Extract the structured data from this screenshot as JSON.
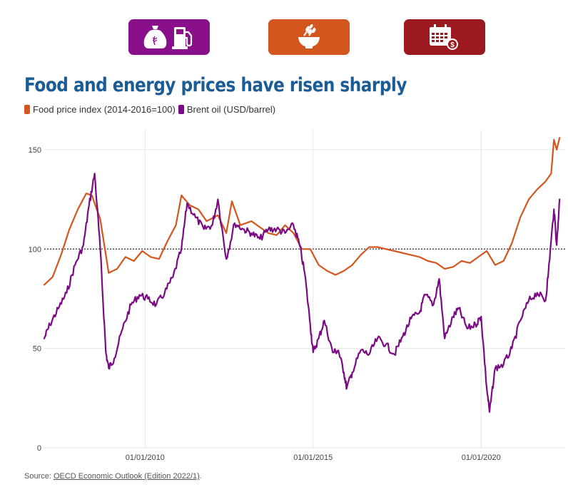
{
  "icons": {
    "tile1": [
      "food-sack-icon",
      "fuel-pump-icon"
    ],
    "tile2": [
      "grain-bowl-icon"
    ],
    "tile3": [
      "calendar-dollar-icon"
    ],
    "colors": {
      "purple": "#8a0f8b",
      "orange": "#d4561f",
      "red": "#9c1a1f"
    }
  },
  "title": "Food and energy prices have risen sharply",
  "chart_data": {
    "type": "line",
    "title": "Food and energy prices have risen sharply",
    "xlabel": "",
    "ylabel": "",
    "xlim": [
      "2007-01-01",
      "2022-07-01"
    ],
    "ylim": [
      0,
      160
    ],
    "yticks": [
      "0",
      "50",
      "100",
      "150"
    ],
    "xticks": [
      "01/01/2010",
      "01/01/2015",
      "01/01/2020"
    ],
    "xtick_dates": [
      "2010-01-01",
      "2015-01-01",
      "2020-01-01"
    ],
    "reference_line": {
      "y": 100,
      "style": "dotted"
    },
    "grid": true,
    "legend_position": "top-left",
    "series": [
      {
        "name": "Food price index (2014-2016=100)",
        "color": "#d4561f",
        "x": [
          "2007-01",
          "2007-04",
          "2007-07",
          "2007-10",
          "2008-01",
          "2008-04",
          "2008-06",
          "2008-09",
          "2008-12",
          "2009-03",
          "2009-06",
          "2009-09",
          "2009-12",
          "2010-03",
          "2010-06",
          "2010-09",
          "2010-12",
          "2011-02",
          "2011-05",
          "2011-08",
          "2011-11",
          "2012-03",
          "2012-06",
          "2012-08",
          "2012-11",
          "2013-03",
          "2013-06",
          "2013-09",
          "2013-12",
          "2014-03",
          "2014-06",
          "2014-09",
          "2014-12",
          "2015-03",
          "2015-06",
          "2015-09",
          "2015-12",
          "2016-03",
          "2016-06",
          "2016-09",
          "2016-12",
          "2017-03",
          "2017-06",
          "2017-09",
          "2017-12",
          "2018-03",
          "2018-06",
          "2018-09",
          "2018-12",
          "2019-03",
          "2019-06",
          "2019-09",
          "2019-12",
          "2020-03",
          "2020-06",
          "2020-09",
          "2020-12",
          "2021-03",
          "2021-06",
          "2021-09",
          "2021-12",
          "2022-02",
          "2022-03",
          "2022-04",
          "2022-05"
        ],
        "values": [
          82,
          86,
          97,
          110,
          120,
          128,
          127,
          115,
          88,
          90,
          96,
          94,
          99,
          96,
          95,
          104,
          112,
          127,
          122,
          120,
          114,
          117,
          108,
          124,
          112,
          114,
          111,
          108,
          107,
          112,
          108,
          100,
          100,
          92,
          89,
          87,
          89,
          92,
          97,
          101,
          101,
          100,
          99,
          98,
          97,
          96,
          94,
          93,
          90,
          91,
          94,
          93,
          96,
          99,
          92,
          94,
          103,
          116,
          125,
          130,
          134,
          138,
          155,
          150,
          156
        ]
      },
      {
        "name": "Brent oil (USD/barrel)",
        "color": "#7b0a85",
        "x": [
          "2007-01",
          "2007-03",
          "2007-06",
          "2007-09",
          "2007-12",
          "2008-03",
          "2008-05",
          "2008-07",
          "2008-09",
          "2008-11",
          "2008-12",
          "2009-02",
          "2009-05",
          "2009-08",
          "2009-11",
          "2010-02",
          "2010-05",
          "2010-08",
          "2010-11",
          "2011-02",
          "2011-04",
          "2011-07",
          "2011-10",
          "2012-01",
          "2012-03",
          "2012-06",
          "2012-09",
          "2012-12",
          "2013-03",
          "2013-06",
          "2013-09",
          "2013-12",
          "2014-03",
          "2014-06",
          "2014-08",
          "2014-10",
          "2014-12",
          "2015-01",
          "2015-03",
          "2015-05",
          "2015-08",
          "2015-10",
          "2015-12",
          "2016-01",
          "2016-03",
          "2016-06",
          "2016-09",
          "2016-12",
          "2017-03",
          "2017-06",
          "2017-09",
          "2017-12",
          "2018-03",
          "2018-05",
          "2018-08",
          "2018-10",
          "2018-12",
          "2019-03",
          "2019-05",
          "2019-08",
          "2019-11",
          "2020-01",
          "2020-03",
          "2020-04",
          "2020-06",
          "2020-09",
          "2020-12",
          "2021-03",
          "2021-06",
          "2021-09",
          "2021-12",
          "2022-01",
          "2022-03",
          "2022-04",
          "2022-05"
        ],
        "values": [
          55,
          62,
          70,
          78,
          92,
          102,
          122,
          138,
          100,
          48,
          40,
          45,
          60,
          72,
          77,
          75,
          72,
          78,
          86,
          100,
          123,
          116,
          110,
          112,
          125,
          95,
          113,
          110,
          108,
          105,
          110,
          110,
          108,
          112,
          103,
          88,
          62,
          48,
          55,
          64,
          48,
          49,
          38,
          30,
          38,
          49,
          47,
          55,
          52,
          47,
          56,
          65,
          68,
          77,
          72,
          85,
          55,
          66,
          70,
          60,
          62,
          66,
          30,
          18,
          40,
          42,
          50,
          64,
          74,
          78,
          74,
          88,
          120,
          102,
          125
        ]
      }
    ]
  },
  "source": {
    "prefix": "Source: ",
    "link_text": "OECD Economic Outlook (Edition 2022/1)",
    "suffix": "."
  }
}
